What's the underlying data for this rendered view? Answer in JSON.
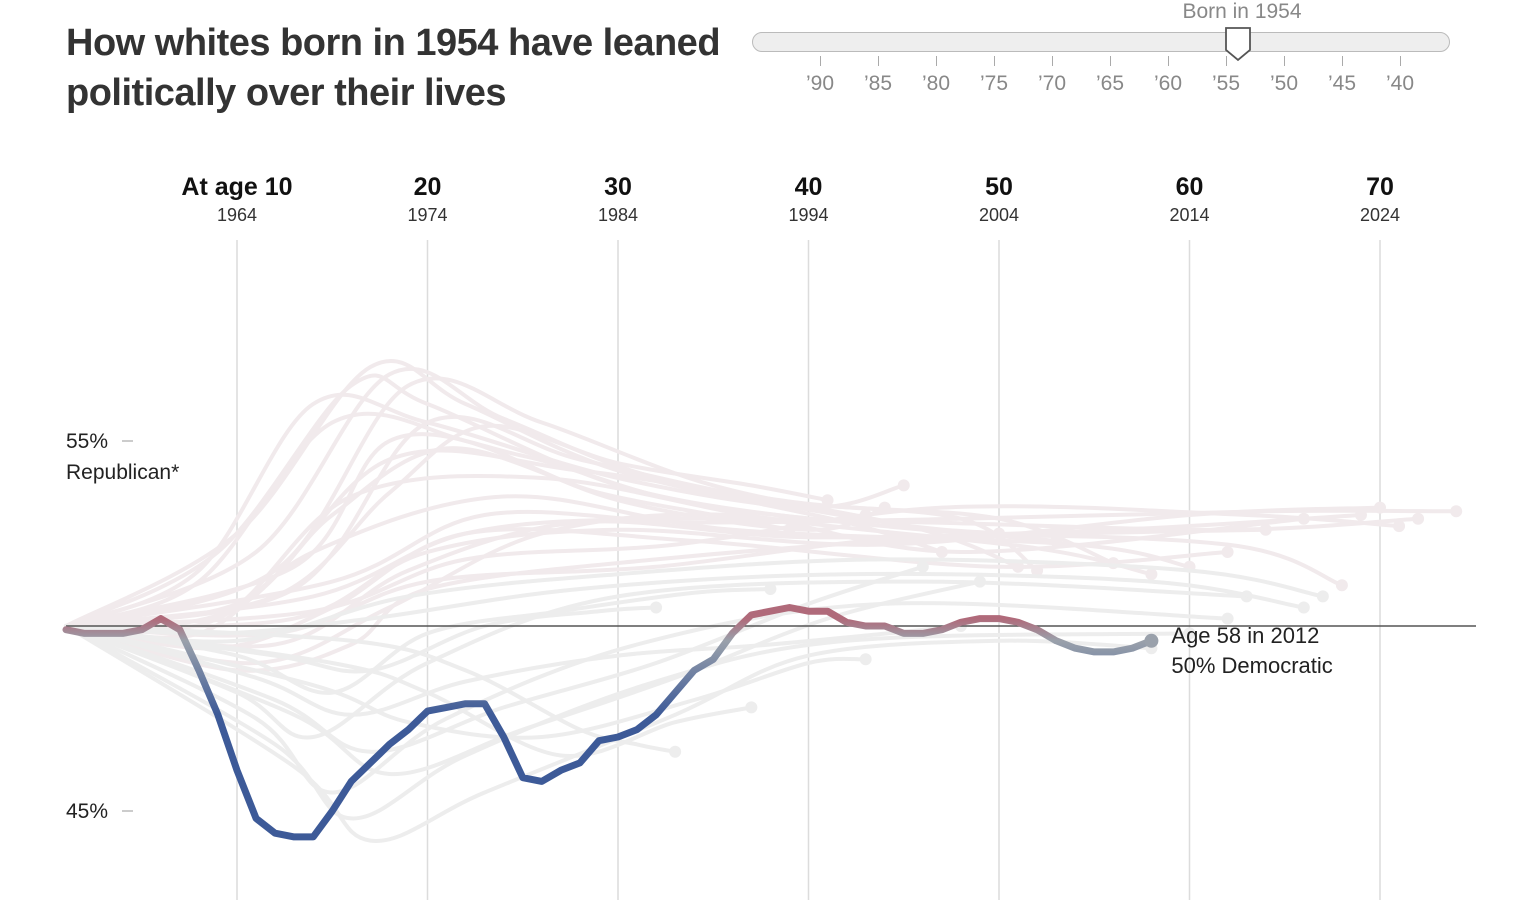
{
  "title": "How whites born in 1954 have leaned politically over their lives",
  "slider": {
    "label": "Born in 1954",
    "selected_birth_year": 1954,
    "tick_labels": [
      "’90",
      "’85",
      "’80",
      "’75",
      "’70",
      "’65",
      "’60",
      "’55",
      "’50",
      "’45",
      "’40"
    ]
  },
  "colors": {
    "republican": "#b06a7a",
    "democratic": "#3d5a98",
    "neutral": "#9aa1ab",
    "background_lines": "#ececec",
    "baseline": "#555555"
  },
  "chart_data": {
    "type": "line",
    "title": "How whites born in 1954 have leaned politically over their lives",
    "x_unit": "age",
    "xlim": [
      1,
      75
    ],
    "ylim": [
      44,
      57
    ],
    "y_ticks": [
      {
        "value": 55,
        "label": "55%",
        "sublabel": "Republican*"
      },
      {
        "value": 45,
        "label": "45%",
        "sublabel": ""
      }
    ],
    "baseline": 50,
    "age_columns": [
      {
        "age_label": "At age 10",
        "year": "1964",
        "age": 10
      },
      {
        "age_label": "20",
        "year": "1974",
        "age": 20
      },
      {
        "age_label": "30",
        "year": "1984",
        "age": 30
      },
      {
        "age_label": "40",
        "year": "1994",
        "age": 40
      },
      {
        "age_label": "50",
        "year": "2004",
        "age": 50
      },
      {
        "age_label": "60",
        "year": "2014",
        "age": 60
      },
      {
        "age_label": "70",
        "year": "2024",
        "age": 70
      }
    ],
    "highlight_series": {
      "birth_year": 1954,
      "values": [
        [
          1,
          49.9
        ],
        [
          2,
          49.8
        ],
        [
          3,
          49.8
        ],
        [
          4,
          49.8
        ],
        [
          5,
          49.9
        ],
        [
          6,
          50.2
        ],
        [
          7,
          49.9
        ],
        [
          8,
          48.8
        ],
        [
          9,
          47.6
        ],
        [
          10,
          46.1
        ],
        [
          11,
          44.8
        ],
        [
          12,
          44.4
        ],
        [
          13,
          44.3
        ],
        [
          14,
          44.3
        ],
        [
          15,
          45.0
        ],
        [
          16,
          45.8
        ],
        [
          17,
          46.3
        ],
        [
          18,
          46.8
        ],
        [
          19,
          47.2
        ],
        [
          20,
          47.7
        ],
        [
          21,
          47.8
        ],
        [
          22,
          47.9
        ],
        [
          23,
          47.9
        ],
        [
          24,
          47.0
        ],
        [
          25,
          45.9
        ],
        [
          26,
          45.8
        ],
        [
          27,
          46.1
        ],
        [
          28,
          46.3
        ],
        [
          29,
          46.9
        ],
        [
          30,
          47.0
        ],
        [
          31,
          47.2
        ],
        [
          32,
          47.6
        ],
        [
          33,
          48.2
        ],
        [
          34,
          48.8
        ],
        [
          35,
          49.1
        ],
        [
          36,
          49.8
        ],
        [
          37,
          50.3
        ],
        [
          38,
          50.4
        ],
        [
          39,
          50.5
        ],
        [
          40,
          50.4
        ],
        [
          41,
          50.4
        ],
        [
          42,
          50.1
        ],
        [
          43,
          50.0
        ],
        [
          44,
          50.0
        ],
        [
          45,
          49.8
        ],
        [
          46,
          49.8
        ],
        [
          47,
          49.9
        ],
        [
          48,
          50.1
        ],
        [
          49,
          50.2
        ],
        [
          50,
          50.2
        ],
        [
          51,
          50.1
        ],
        [
          52,
          49.9
        ],
        [
          53,
          49.6
        ],
        [
          54,
          49.4
        ],
        [
          55,
          49.3
        ],
        [
          56,
          49.3
        ],
        [
          57,
          49.4
        ],
        [
          58,
          49.6
        ]
      ]
    },
    "end_annotation": {
      "line1": "Age 58 in 2012",
      "line2": "50% Democratic"
    },
    "background_series": [
      [
        [
          1,
          50.0
        ],
        [
          8,
          51.5
        ],
        [
          14,
          56.0
        ],
        [
          20,
          55.5
        ],
        [
          30,
          54.0
        ],
        [
          40,
          53.2
        ],
        [
          45,
          53.8
        ]
      ],
      [
        [
          1,
          50.0
        ],
        [
          8,
          51.2
        ],
        [
          15,
          55.5
        ],
        [
          22,
          55.0
        ],
        [
          30,
          53.4
        ],
        [
          40,
          52.6
        ],
        [
          44,
          53.2
        ]
      ],
      [
        [
          1,
          50.0
        ],
        [
          9,
          52.0
        ],
        [
          16,
          56.5
        ],
        [
          20,
          56.0
        ],
        [
          30,
          53.8
        ],
        [
          40,
          52.9
        ],
        [
          43,
          53.0
        ]
      ],
      [
        [
          1,
          50.0
        ],
        [
          10,
          52.5
        ],
        [
          17,
          57.0
        ],
        [
          22,
          56.0
        ],
        [
          30,
          54.2
        ],
        [
          42,
          52.8
        ],
        [
          47,
          52.0
        ]
      ],
      [
        [
          1,
          50.0
        ],
        [
          11,
          52.0
        ],
        [
          18,
          56.8
        ],
        [
          24,
          55.6
        ],
        [
          32,
          54.0
        ],
        [
          44,
          52.8
        ],
        [
          50,
          52.5
        ]
      ],
      [
        [
          1,
          50.0
        ],
        [
          12,
          51.5
        ],
        [
          19,
          56.5
        ],
        [
          26,
          55.5
        ],
        [
          35,
          53.8
        ],
        [
          46,
          52.6
        ],
        [
          51,
          51.6
        ]
      ],
      [
        [
          1,
          50.0
        ],
        [
          13,
          51.0
        ],
        [
          20,
          55.5
        ],
        [
          28,
          54.5
        ],
        [
          38,
          53.4
        ],
        [
          48,
          52.9
        ],
        [
          52,
          51.5
        ]
      ],
      [
        [
          1,
          50.0
        ],
        [
          10,
          50.5
        ],
        [
          18,
          54.5
        ],
        [
          28,
          54.2
        ],
        [
          40,
          53.3
        ],
        [
          50,
          52.9
        ],
        [
          56,
          51.7
        ]
      ],
      [
        [
          1,
          50.0
        ],
        [
          9,
          50.2
        ],
        [
          16,
          53.5
        ],
        [
          26,
          54.0
        ],
        [
          38,
          52.9
        ],
        [
          52,
          52.1
        ],
        [
          58,
          51.4
        ]
      ],
      [
        [
          1,
          50.0
        ],
        [
          8,
          49.8
        ],
        [
          14,
          52.0
        ],
        [
          24,
          53.5
        ],
        [
          36,
          52.6
        ],
        [
          54,
          52.2
        ],
        [
          60,
          51.6
        ]
      ],
      [
        [
          1,
          50.0
        ],
        [
          9,
          49.4
        ],
        [
          15,
          50.5
        ],
        [
          22,
          52.5
        ],
        [
          34,
          52.3
        ],
        [
          50,
          51.6
        ],
        [
          62,
          52.0
        ]
      ],
      [
        [
          1,
          50.0
        ],
        [
          10,
          48.8
        ],
        [
          16,
          49.5
        ],
        [
          20,
          51.0
        ],
        [
          32,
          51.8
        ],
        [
          48,
          52.4
        ],
        [
          64,
          52.6
        ]
      ],
      [
        [
          1,
          50.0
        ],
        [
          10,
          48.2
        ],
        [
          14,
          47.0
        ],
        [
          20,
          49.0
        ],
        [
          30,
          50.8
        ],
        [
          46,
          51.2
        ],
        [
          63,
          50.8
        ]
      ],
      [
        [
          1,
          50.0
        ],
        [
          11,
          47.5
        ],
        [
          15,
          45.5
        ],
        [
          21,
          47.5
        ],
        [
          31,
          49.5
        ],
        [
          44,
          50.6
        ],
        [
          62,
          50.2
        ]
      ],
      [
        [
          1,
          50.0
        ],
        [
          12,
          46.8
        ],
        [
          16,
          44.8
        ],
        [
          22,
          46.5
        ],
        [
          32,
          48.5
        ],
        [
          42,
          49.6
        ],
        [
          60,
          49.8
        ]
      ],
      [
        [
          1,
          50.0
        ],
        [
          13,
          46.2
        ],
        [
          17,
          44.2
        ],
        [
          23,
          45.5
        ],
        [
          33,
          47.6
        ],
        [
          40,
          49.2
        ],
        [
          50,
          49.6
        ],
        [
          58,
          49.4
        ]
      ],
      [
        [
          1,
          50.0
        ],
        [
          11,
          49.0
        ],
        [
          18,
          50.5
        ],
        [
          26,
          52.5
        ],
        [
          36,
          53.0
        ],
        [
          48,
          52.0
        ],
        [
          66,
          52.9
        ]
      ],
      [
        [
          1,
          50.0
        ],
        [
          12,
          49.5
        ],
        [
          19,
          51.5
        ],
        [
          28,
          52.8
        ],
        [
          40,
          52.4
        ],
        [
          56,
          52.6
        ],
        [
          69,
          53.0
        ]
      ],
      [
        [
          1,
          50.0
        ],
        [
          13,
          50.2
        ],
        [
          20,
          52.0
        ],
        [
          30,
          52.6
        ],
        [
          44,
          52.2
        ],
        [
          60,
          53.0
        ],
        [
          70,
          53.2
        ]
      ],
      [
        [
          1,
          50.0
        ],
        [
          14,
          50.8
        ],
        [
          22,
          52.5
        ],
        [
          32,
          52.9
        ],
        [
          46,
          52.8
        ],
        [
          62,
          52.6
        ],
        [
          72,
          52.9
        ]
      ],
      [
        [
          1,
          50.0
        ],
        [
          15,
          51.2
        ],
        [
          23,
          53.0
        ],
        [
          34,
          52.8
        ],
        [
          48,
          52.9
        ],
        [
          64,
          53.1
        ],
        [
          74,
          53.1
        ]
      ],
      [
        [
          1,
          50.0
        ],
        [
          14,
          50.4
        ],
        [
          22,
          51.8
        ],
        [
          33,
          52.2
        ],
        [
          47,
          53.2
        ],
        [
          63,
          53.0
        ],
        [
          71,
          52.7
        ]
      ],
      [
        [
          1,
          50.0
        ],
        [
          12,
          49.8
        ],
        [
          20,
          51.2
        ],
        [
          32,
          51.6
        ],
        [
          46,
          52.4
        ],
        [
          62,
          52.2
        ],
        [
          68,
          51.1
        ]
      ],
      [
        [
          1,
          50.0
        ],
        [
          10,
          49.6
        ],
        [
          19,
          50.8
        ],
        [
          30,
          51.4
        ],
        [
          44,
          51.8
        ],
        [
          60,
          51.5
        ],
        [
          67,
          50.8
        ]
      ],
      [
        [
          1,
          50.0
        ],
        [
          9,
          49.8
        ],
        [
          17,
          50.2
        ],
        [
          28,
          51.0
        ],
        [
          42,
          51.4
        ],
        [
          58,
          51.2
        ],
        [
          66,
          50.5
        ]
      ],
      [
        [
          1,
          50.0
        ],
        [
          11,
          48.6
        ],
        [
          16,
          47.6
        ],
        [
          22,
          48.5
        ],
        [
          30,
          49.2
        ],
        [
          38,
          49.5
        ],
        [
          48,
          50.0
        ]
      ],
      [
        [
          1,
          50.0
        ],
        [
          12,
          48.0
        ],
        [
          17,
          46.6
        ],
        [
          24,
          47.8
        ],
        [
          32,
          49.0
        ],
        [
          40,
          50.6
        ],
        [
          46,
          51.6
        ]
      ],
      [
        [
          1,
          50.0
        ],
        [
          13,
          47.6
        ],
        [
          18,
          46.0
        ],
        [
          25,
          47.2
        ],
        [
          33,
          48.6
        ],
        [
          41,
          50.2
        ],
        [
          49,
          51.2
        ]
      ],
      [
        [
          1,
          50.0
        ],
        [
          14,
          48.4
        ],
        [
          19,
          47.4
        ],
        [
          26,
          47.0
        ],
        [
          34,
          48.0
        ],
        [
          40,
          49.0
        ],
        [
          43,
          49.1
        ]
      ],
      [
        [
          1,
          50.0
        ],
        [
          15,
          49.0
        ],
        [
          20,
          48.2
        ],
        [
          27,
          46.5
        ],
        [
          33,
          47.4
        ],
        [
          37,
          47.8
        ]
      ],
      [
        [
          1,
          50.0
        ],
        [
          16,
          49.6
        ],
        [
          22,
          48.8
        ],
        [
          28,
          47.2
        ],
        [
          31,
          46.8
        ],
        [
          33,
          46.6
        ]
      ],
      [
        [
          1,
          50.0
        ],
        [
          10,
          50.6
        ],
        [
          15,
          53.0
        ],
        [
          21,
          54.8
        ],
        [
          29,
          53.6
        ],
        [
          35,
          53.0
        ],
        [
          39,
          52.6
        ]
      ],
      [
        [
          1,
          50.0
        ],
        [
          12,
          50.8
        ],
        [
          18,
          53.6
        ],
        [
          23,
          55.4
        ],
        [
          30,
          54.4
        ],
        [
          37,
          53.8
        ],
        [
          41,
          53.4
        ]
      ],
      [
        [
          1,
          50.0
        ],
        [
          13,
          51.6
        ],
        [
          18,
          55.0
        ],
        [
          25,
          54.6
        ],
        [
          33,
          53.4
        ],
        [
          42,
          52.8
        ],
        [
          53,
          52.3
        ]
      ],
      [
        [
          1,
          50.0
        ],
        [
          10,
          49.2
        ],
        [
          15,
          48.2
        ],
        [
          20,
          49.8
        ],
        [
          27,
          50.4
        ],
        [
          34,
          50.9
        ],
        [
          38,
          51.0
        ]
      ],
      [
        [
          1,
          50.0
        ],
        [
          12,
          49.2
        ],
        [
          17,
          48.8
        ],
        [
          23,
          50.0
        ],
        [
          29,
          50.4
        ],
        [
          32,
          50.5
        ]
      ]
    ]
  }
}
